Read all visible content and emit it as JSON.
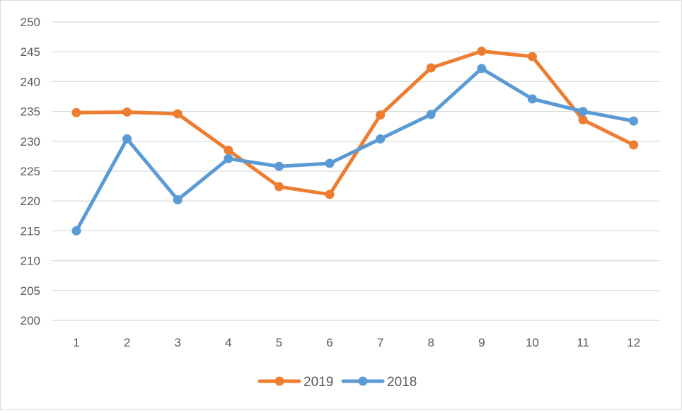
{
  "chart_data": {
    "type": "line",
    "title": "",
    "xlabel": "",
    "ylabel": "",
    "categories": [
      "1",
      "2",
      "3",
      "4",
      "5",
      "6",
      "7",
      "8",
      "9",
      "10",
      "11",
      "12"
    ],
    "series": [
      {
        "name": "2019",
        "color": "#ed7d31",
        "values": [
          234.8,
          234.9,
          234.6,
          228.5,
          222.4,
          221.1,
          234.4,
          242.3,
          245.1,
          244.2,
          233.6,
          229.4
        ]
      },
      {
        "name": "2018",
        "color": "#5b9bd5",
        "values": [
          215.0,
          230.4,
          220.2,
          227.1,
          225.8,
          226.3,
          230.4,
          234.5,
          242.2,
          237.1,
          235.0,
          233.4
        ]
      }
    ],
    "ylim": [
      200,
      250
    ],
    "yticks": [
      "200",
      "205",
      "210",
      "215",
      "220",
      "225",
      "230",
      "235",
      "240",
      "245",
      "250"
    ],
    "grid": true,
    "legend_position": "bottom",
    "gridline_color": "#d9d9d9"
  }
}
